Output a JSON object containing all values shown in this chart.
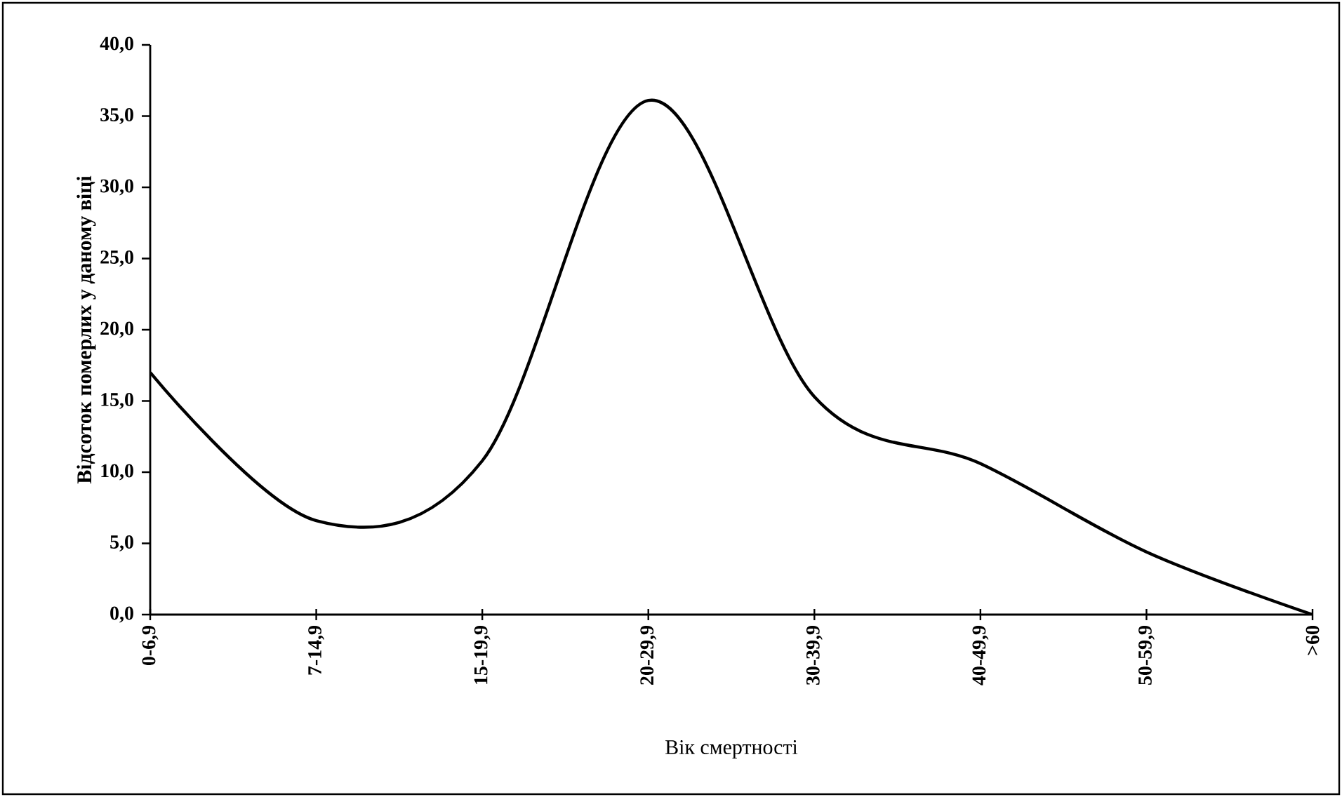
{
  "chart_data": {
    "type": "line",
    "xlabel": "Вік смертності",
    "ylabel": "Відсоток померлих у даному віці",
    "categories": [
      "0-6,9",
      "7-14,9",
      "15-19,9",
      "20-29,9",
      "30-39,9",
      "40-49,9",
      "50-59,9",
      ">60"
    ],
    "series": [
      {
        "color": "#000000",
        "values": [
          17.0,
          6.6,
          10.8,
          36.1,
          15.3,
          10.6,
          4.4,
          0.0
        ]
      }
    ],
    "ylim": [
      0,
      40
    ],
    "yticks": [
      {
        "value": 0,
        "label": "0,0"
      },
      {
        "value": 5,
        "label": "5,0"
      },
      {
        "value": 10,
        "label": "10,0"
      },
      {
        "value": 15,
        "label": "15,0"
      },
      {
        "value": 20,
        "label": "20,0"
      },
      {
        "value": 25,
        "label": "25,0"
      },
      {
        "value": 30,
        "label": "30,0"
      },
      {
        "value": 35,
        "label": "35,0"
      },
      {
        "value": 40,
        "label": "40,0"
      }
    ],
    "grid": false,
    "marker": "none",
    "line_style": "solid"
  }
}
